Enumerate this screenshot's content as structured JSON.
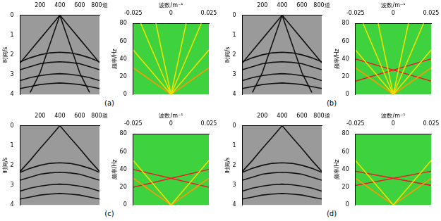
{
  "chart_data": [
    {
      "type": "line",
      "xlim": [
        0,
        800
      ],
      "xticks": [
        200,
        400,
        600,
        {
          "value": 800,
          "label": "800道"
        }
      ],
      "ylabel": "时间/s",
      "ylim": [
        4,
        0
      ],
      "yticks": [
        0,
        1,
        2,
        3,
        4
      ],
      "grid": false,
      "color": "#9a9a9a",
      "x": [
        0,
        100,
        200,
        300,
        400,
        500,
        600,
        700,
        800
      ],
      "series": [
        {
          "color": "#111111",
          "values": [
            2.4,
            1.8,
            1.2,
            0.6,
            0,
            0.6,
            1.2,
            1.8,
            2.4
          ]
        },
        {
          "color": "#111111",
          "values": [
            null,
            3.9,
            2.9,
            1.45,
            0,
            1.45,
            2.9,
            3.9,
            null
          ]
        },
        {
          "color": "#111111",
          "values": [
            2.35,
            2.15,
            2.0,
            1.9,
            1.87,
            1.9,
            2.0,
            2.15,
            2.35
          ]
        },
        {
          "color": "#111111",
          "values": [
            2.75,
            2.6,
            2.45,
            2.38,
            2.35,
            2.38,
            2.45,
            2.6,
            2.75
          ]
        },
        {
          "color": "#111111",
          "values": [
            3.3,
            3.15,
            3.05,
            2.98,
            2.95,
            2.98,
            3.05,
            3.15,
            3.3
          ]
        },
        {
          "color": "#111111",
          "values": [
            3.7,
            3.6,
            3.5,
            3.45,
            3.42,
            3.45,
            3.5,
            3.6,
            3.7
          ]
        }
      ]
    },
    {
      "type": "line",
      "xlabel": "波数/m⁻¹",
      "xlim": [
        -0.025,
        0.025
      ],
      "xticks": [
        -0.025,
        0,
        0.025
      ],
      "ylabel": "频率/Hz",
      "ylim": [
        0,
        80
      ],
      "yticks": [
        0,
        20,
        40,
        60,
        80
      ],
      "grid": false,
      "color": "#3fd23f",
      "annotation": "(a)",
      "x": [
        -0.025,
        -0.02,
        -0.015,
        -0.01,
        -0.005,
        0,
        0.005,
        0.01,
        0.015,
        0.02,
        0.025
      ],
      "series": [
        {
          "color": "#f0e000",
          "values": [
            null,
            null,
            null,
            80,
            40,
            0,
            40,
            80,
            null,
            null,
            null
          ]
        },
        {
          "color": "#f0e000",
          "values": [
            null,
            80,
            60,
            40,
            20,
            0,
            20,
            40,
            60,
            80,
            null
          ]
        },
        {
          "color": "#f0e000",
          "values": [
            50,
            40,
            30,
            20,
            10,
            0,
            10,
            20,
            30,
            40,
            50
          ]
        },
        {
          "color": "#ff9900",
          "values": [
            30,
            24,
            18,
            12,
            6,
            0,
            6,
            12,
            18,
            24,
            30
          ]
        }
      ]
    },
    {
      "type": "line",
      "xlim": [
        0,
        800
      ],
      "xticks": [
        200,
        400,
        600,
        {
          "value": 800,
          "label": "800道"
        }
      ],
      "ylabel": "时间/s",
      "ylim": [
        4,
        0
      ],
      "yticks": [
        0,
        1,
        2,
        3,
        4
      ],
      "grid": false,
      "color": "#9a9a9a",
      "x": [
        0,
        100,
        200,
        300,
        400,
        500,
        600,
        700,
        800
      ],
      "series": [
        {
          "color": "#111111",
          "values": [
            2.4,
            1.8,
            1.2,
            0.6,
            0,
            0.6,
            1.2,
            1.8,
            2.4
          ]
        },
        {
          "color": "#111111",
          "values": [
            null,
            3.9,
            2.9,
            1.45,
            0,
            1.45,
            2.9,
            3.9,
            null
          ]
        },
        {
          "color": "#111111",
          "values": [
            2.35,
            2.15,
            2.0,
            1.9,
            1.87,
            1.9,
            2.0,
            2.15,
            2.35
          ]
        },
        {
          "color": "#111111",
          "values": [
            2.75,
            2.6,
            2.45,
            2.38,
            2.35,
            2.38,
            2.45,
            2.6,
            2.75
          ]
        },
        {
          "color": "#111111",
          "values": [
            3.3,
            3.15,
            3.05,
            2.98,
            2.95,
            2.98,
            3.05,
            3.15,
            3.3
          ]
        },
        {
          "color": "#111111",
          "values": [
            3.7,
            3.6,
            3.5,
            3.45,
            3.42,
            3.45,
            3.5,
            3.6,
            3.7
          ]
        }
      ]
    },
    {
      "type": "line",
      "xlabel": "波数/m⁻¹",
      "xlim": [
        -0.025,
        0.025
      ],
      "xticks": [
        -0.025,
        0,
        0.025
      ],
      "ylabel": "频率/Hz",
      "ylim": [
        0,
        80
      ],
      "yticks": [
        0,
        20,
        40,
        60,
        80
      ],
      "grid": false,
      "color": "#3fd23f",
      "annotation": "(b)",
      "x": [
        -0.025,
        -0.02,
        -0.015,
        -0.01,
        -0.005,
        0,
        0.005,
        0.01,
        0.015,
        0.02,
        0.025
      ],
      "series": [
        {
          "color": "#f0e000",
          "values": [
            null,
            null,
            null,
            80,
            40,
            0,
            40,
            80,
            null,
            null,
            null
          ]
        },
        {
          "color": "#f0e000",
          "values": [
            null,
            80,
            60,
            40,
            20,
            0,
            20,
            40,
            60,
            80,
            null
          ]
        },
        {
          "color": "#f0e000",
          "values": [
            50,
            40,
            30,
            20,
            10,
            0,
            10,
            20,
            30,
            40,
            50
          ]
        },
        {
          "color": "#ff9900",
          "values": [
            30,
            24,
            18,
            12,
            6,
            0,
            6,
            12,
            18,
            24,
            30
          ]
        },
        {
          "color": "#e8202a",
          "values": [
            15,
            null,
            null,
            null,
            null,
            null,
            null,
            null,
            null,
            null,
            40
          ]
        },
        {
          "color": "#e8202a",
          "values": [
            40,
            null,
            null,
            null,
            null,
            null,
            null,
            null,
            null,
            null,
            15
          ]
        }
      ]
    },
    {
      "type": "line",
      "xlim": [
        0,
        800
      ],
      "xticks": [
        200,
        400,
        600,
        {
          "value": 800,
          "label": "800道"
        }
      ],
      "ylabel": "时间/s",
      "ylim": [
        4,
        0
      ],
      "yticks": [
        0,
        1,
        2,
        3,
        4
      ],
      "grid": false,
      "color": "#9a9a9a",
      "x": [
        0,
        100,
        200,
        300,
        400,
        500,
        600,
        700,
        800
      ],
      "series": [
        {
          "color": "#111111",
          "values": [
            2.3,
            1.75,
            1.15,
            0.58,
            0,
            0.58,
            1.15,
            1.75,
            2.3
          ]
        },
        {
          "color": "#111111",
          "values": [
            2.35,
            2.15,
            2.0,
            1.9,
            1.87,
            1.9,
            2.0,
            2.15,
            2.35
          ]
        },
        {
          "color": "#111111",
          "values": [
            2.75,
            2.6,
            2.45,
            2.38,
            2.35,
            2.38,
            2.45,
            2.6,
            2.75
          ]
        },
        {
          "color": "#111111",
          "values": [
            3.3,
            3.15,
            3.05,
            2.98,
            2.95,
            2.98,
            3.05,
            3.15,
            3.3
          ]
        },
        {
          "color": "#111111",
          "values": [
            3.7,
            3.6,
            3.5,
            3.45,
            3.42,
            3.45,
            3.5,
            3.6,
            3.7
          ]
        }
      ]
    },
    {
      "type": "line",
      "xlabel": "波数/m⁻¹",
      "xlim": [
        -0.025,
        0.025
      ],
      "xticks": [
        -0.025,
        0,
        0.025
      ],
      "ylabel": "频率/Hz",
      "ylim": [
        0,
        80
      ],
      "yticks": [
        0,
        20,
        40,
        60,
        80
      ],
      "grid": false,
      "color": "#3fd23f",
      "annotation": "(c)",
      "x": [
        -0.025,
        -0.02,
        -0.015,
        -0.01,
        -0.005,
        0,
        0.005,
        0.01,
        0.015,
        0.02,
        0.025
      ],
      "series": [
        {
          "color": "#f0e000",
          "values": [
            50,
            40,
            30,
            20,
            10,
            0,
            10,
            20,
            30,
            40,
            50
          ]
        },
        {
          "color": "#ff9900",
          "values": [
            30,
            24,
            18,
            12,
            6,
            0,
            6,
            12,
            18,
            24,
            30
          ]
        },
        {
          "color": "#e8202a",
          "values": [
            20,
            null,
            null,
            null,
            null,
            null,
            null,
            null,
            null,
            null,
            40
          ]
        },
        {
          "color": "#e8202a",
          "values": [
            40,
            null,
            null,
            null,
            null,
            null,
            null,
            null,
            null,
            null,
            20
          ]
        }
      ]
    },
    {
      "type": "line",
      "xlim": [
        0,
        800
      ],
      "xticks": [
        200,
        400,
        600,
        {
          "value": 800,
          "label": "800道"
        }
      ],
      "ylabel": "时间/s",
      "ylim": [
        4,
        0
      ],
      "yticks": [
        0,
        1,
        2,
        3,
        4
      ],
      "grid": false,
      "color": "#9a9a9a",
      "x": [
        0,
        100,
        200,
        300,
        400,
        500,
        600,
        700,
        800
      ],
      "series": [
        {
          "color": "#111111",
          "values": [
            2.3,
            1.75,
            1.15,
            0.58,
            0,
            0.58,
            1.15,
            1.75,
            2.3
          ]
        },
        {
          "color": "#111111",
          "values": [
            2.35,
            2.15,
            2.0,
            1.9,
            1.87,
            1.9,
            2.0,
            2.15,
            2.35
          ]
        },
        {
          "color": "#111111",
          "values": [
            2.75,
            2.6,
            2.45,
            2.38,
            2.35,
            2.38,
            2.45,
            2.6,
            2.75
          ]
        },
        {
          "color": "#111111",
          "values": [
            3.3,
            3.15,
            3.05,
            2.98,
            2.95,
            2.98,
            3.05,
            3.15,
            3.3
          ]
        },
        {
          "color": "#111111",
          "values": [
            3.7,
            3.6,
            3.5,
            3.45,
            3.42,
            3.45,
            3.5,
            3.6,
            3.7
          ]
        }
      ]
    },
    {
      "type": "line",
      "xlabel": "波数/m⁻¹",
      "xlim": [
        -0.025,
        0.025
      ],
      "xticks": [
        -0.025,
        0,
        0.025
      ],
      "ylabel": "频率/Hz",
      "ylim": [
        0,
        80
      ],
      "yticks": [
        0,
        20,
        40,
        60,
        80
      ],
      "grid": false,
      "color": "#3fd23f",
      "annotation": "(d)",
      "x": [
        -0.025,
        -0.02,
        -0.015,
        -0.01,
        -0.005,
        0,
        0.005,
        0.01,
        0.015,
        0.02,
        0.025
      ],
      "series": [
        {
          "color": "#f0e000",
          "values": [
            50,
            40,
            30,
            20,
            10,
            0,
            10,
            20,
            30,
            40,
            50
          ]
        },
        {
          "color": "#ff9900",
          "values": [
            30,
            24,
            18,
            12,
            6,
            0,
            6,
            12,
            18,
            24,
            30
          ]
        },
        {
          "color": "#e8202a",
          "values": [
            22,
            null,
            null,
            null,
            null,
            null,
            null,
            null,
            null,
            null,
            38
          ]
        },
        {
          "color": "#e8202a",
          "values": [
            38,
            null,
            null,
            null,
            null,
            null,
            null,
            null,
            null,
            null,
            22
          ]
        }
      ]
    }
  ]
}
